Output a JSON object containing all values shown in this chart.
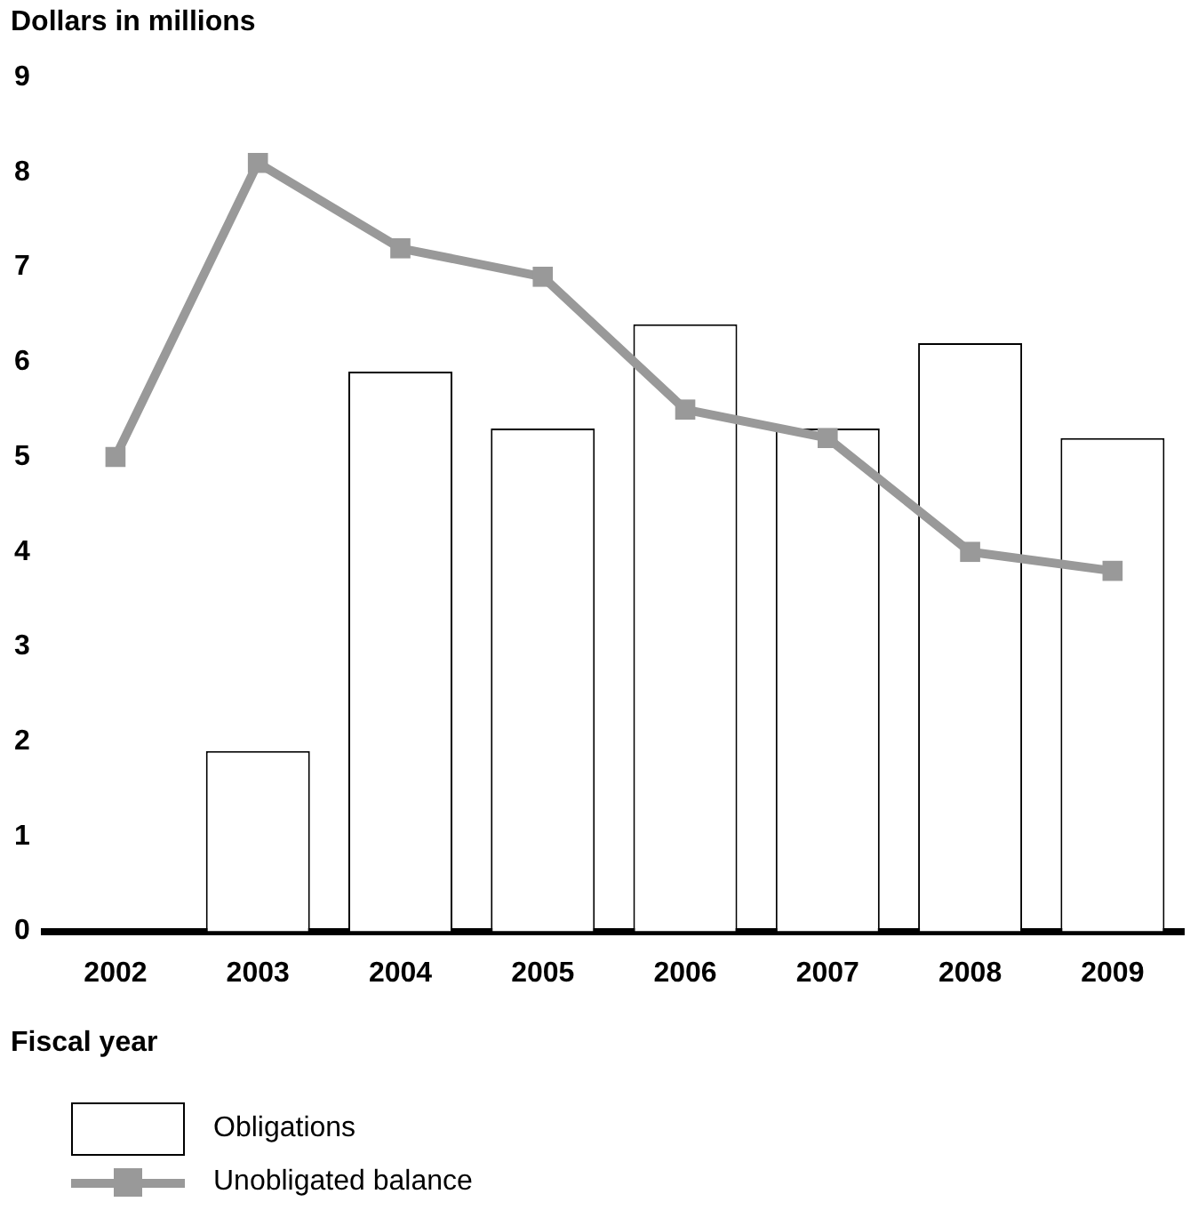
{
  "chart_data": {
    "type": "bar",
    "ylabel": "Dollars in millions",
    "xlabel": "Fiscal year",
    "categories": [
      "2002",
      "2003",
      "2004",
      "2005",
      "2006",
      "2007",
      "2008",
      "2009"
    ],
    "series": [
      {
        "name": "Obligations",
        "color": "#ffffff",
        "values": [
          null,
          1.9,
          5.9,
          5.3,
          6.4,
          5.3,
          6.2,
          5.2
        ]
      },
      {
        "name": "Unobligated balance",
        "type": "line",
        "color": "#999999",
        "values": [
          5.0,
          8.1,
          7.2,
          6.9,
          5.5,
          5.2,
          4.0,
          3.8
        ]
      }
    ],
    "ylim": [
      0,
      9
    ],
    "yticks": [
      0,
      1,
      2,
      3,
      4,
      5,
      6,
      7,
      8,
      9
    ],
    "grid": false,
    "legend": "bottom",
    "marker": "square"
  }
}
